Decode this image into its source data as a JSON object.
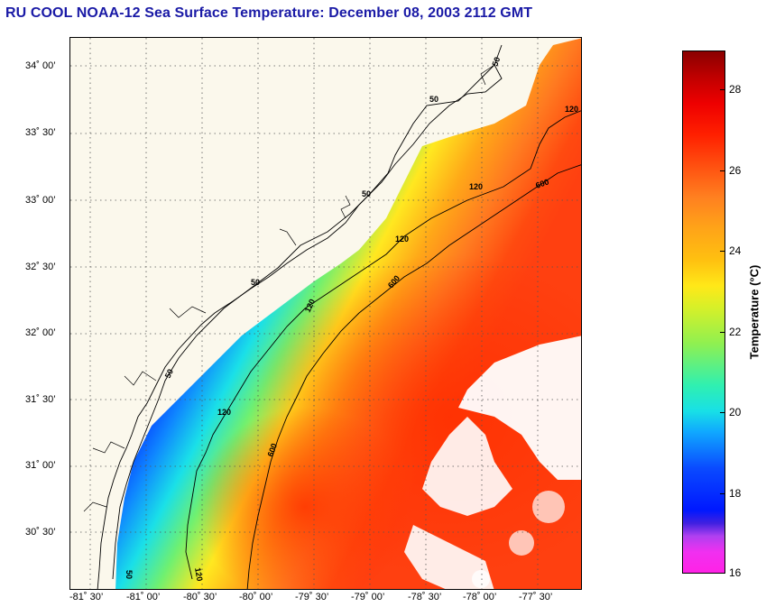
{
  "title": "RU COOL  NOAA-12  Sea Surface Temperature:  December 08, 2003 2112 GMT",
  "map": {
    "lat_ticks": [
      "34˚ 00’",
      "33˚ 30’",
      "33˚ 00’",
      "32˚ 30’",
      "32˚ 00’",
      "31˚ 30’",
      "31˚ 00’",
      "30˚ 30’"
    ],
    "lon_ticks": [
      "-81˚ 30’",
      "-81˚ 00’",
      "-80˚ 30’",
      "-80˚ 00’",
      "-79˚ 30’",
      "-79˚ 00’",
      "-78˚ 30’",
      "-78˚ 00’",
      "-77˚ 30’"
    ],
    "contour_labels": [
      "50",
      "50",
      "50",
      "50",
      "50",
      "50",
      "120",
      "120",
      "120",
      "120",
      "120",
      "120",
      "600",
      "600",
      "600"
    ]
  },
  "colorbar": {
    "label": "Temperature (°C)",
    "ticks": [
      "28",
      "26",
      "24",
      "22",
      "20",
      "18",
      "16"
    ],
    "min": 16,
    "max": 29
  },
  "colors": {
    "title": "#1a1aa6",
    "land": "#fbf8ec"
  }
}
